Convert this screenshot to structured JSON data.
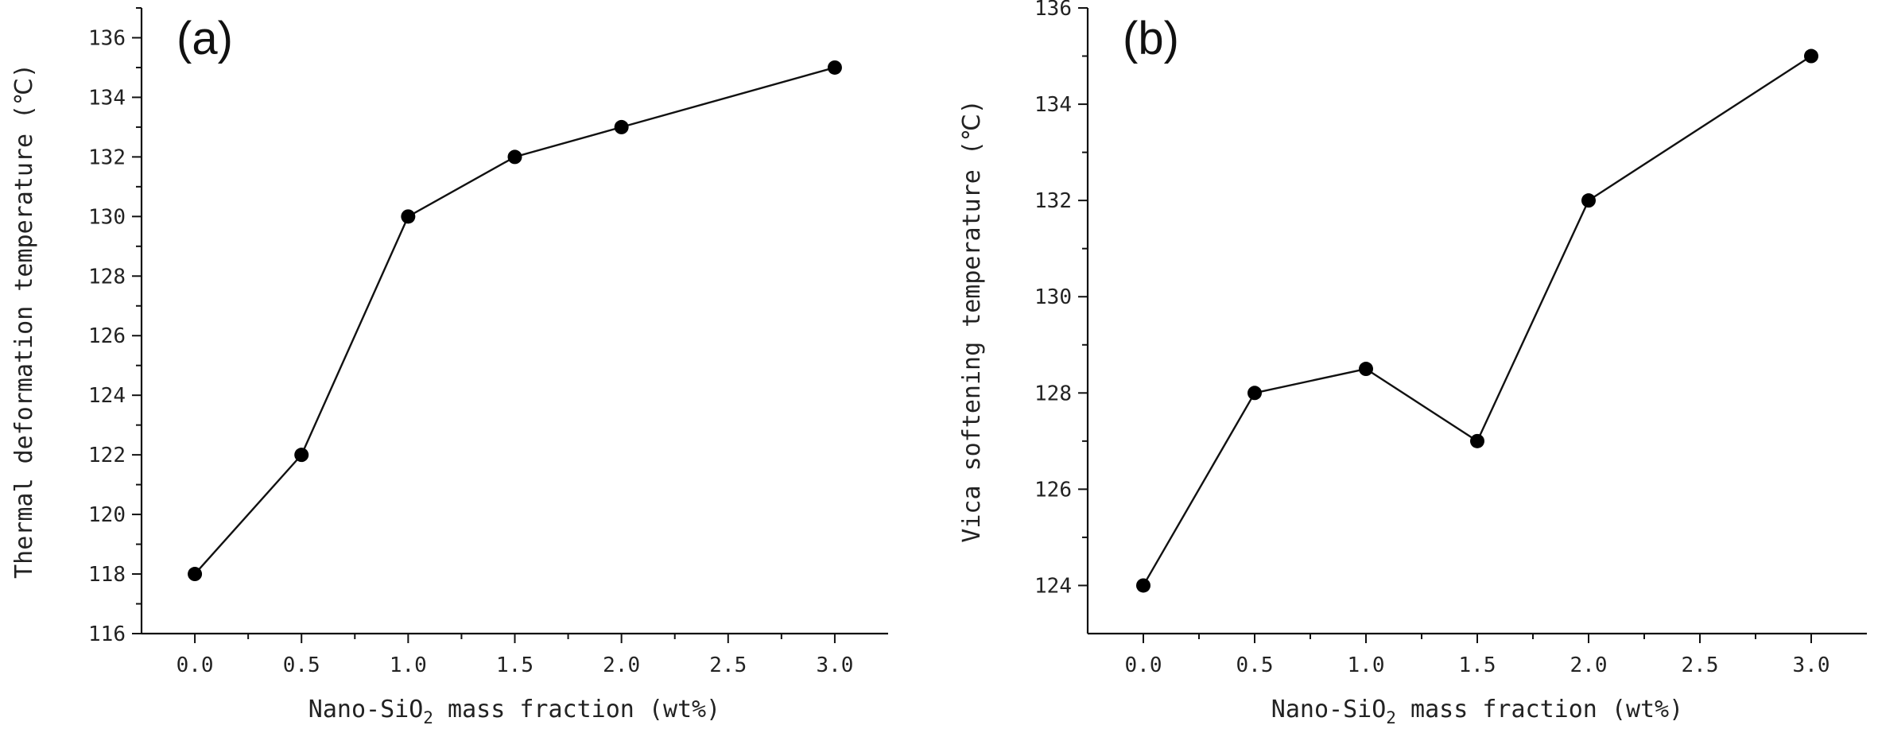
{
  "chart_data": [
    {
      "type": "line",
      "panel_label": "(a)",
      "xlabel_prefix": "Nano-SiO",
      "xlabel_sub": "2",
      "xlabel_suffix": " mass fraction (wt%)",
      "ylabel": "Thermal deformation temperature (℃)",
      "xlim": [
        -0.25,
        3.25
      ],
      "ylim": [
        116,
        137
      ],
      "x_ticks": [
        "0.0",
        "0.5",
        "1.0",
        "1.5",
        "2.0",
        "2.5",
        "3.0"
      ],
      "y_ticks": [
        "116",
        "118",
        "120",
        "122",
        "124",
        "126",
        "128",
        "130",
        "132",
        "134",
        "136"
      ],
      "x": [
        0.0,
        0.5,
        1.0,
        1.5,
        2.0,
        3.0
      ],
      "values": [
        118,
        122,
        130,
        132,
        133,
        135
      ]
    },
    {
      "type": "line",
      "panel_label": "(b)",
      "xlabel_prefix": "Nano-SiO",
      "xlabel_sub": "2",
      "xlabel_suffix": " mass fraction (wt%)",
      "ylabel": "Vica softening temperature (℃)",
      "xlim": [
        -0.25,
        3.25
      ],
      "ylim": [
        123,
        136
      ],
      "x_ticks": [
        "0.0",
        "0.5",
        "1.0",
        "1.5",
        "2.0",
        "2.5",
        "3.0"
      ],
      "y_ticks": [
        "124",
        "126",
        "128",
        "130",
        "132",
        "134",
        "136"
      ],
      "x": [
        0.0,
        0.5,
        1.0,
        1.5,
        2.0,
        3.0
      ],
      "values": [
        124,
        128,
        128.5,
        127,
        132,
        135
      ]
    }
  ]
}
